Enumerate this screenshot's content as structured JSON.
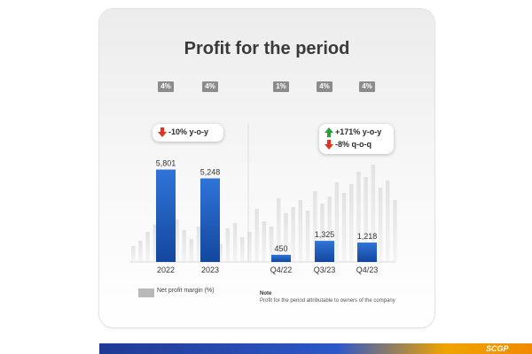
{
  "chart_data": {
    "type": "bar",
    "title": "Profit for the period",
    "annual": {
      "categories": [
        "2022",
        "2023"
      ],
      "values": [
        5801,
        5248
      ],
      "value_labels": [
        "5,801",
        "5,248"
      ],
      "margins": [
        "4%",
        "4%"
      ],
      "change": [
        {
          "direction": "down",
          "text": "-10% y-o-y"
        }
      ]
    },
    "quarterly": {
      "categories": [
        "Q4/22",
        "Q3/23",
        "Q4/23"
      ],
      "values": [
        450,
        1325,
        1218
      ],
      "value_labels": [
        "450",
        "1,325",
        "1,218"
      ],
      "margins": [
        "1%",
        "4%",
        "4%"
      ],
      "change": [
        {
          "direction": "up",
          "text": "+171% y-o-y"
        },
        {
          "direction": "down",
          "text": "-8% q-o-q"
        }
      ]
    },
    "ylim": [
      0,
      7000
    ],
    "series_color": "#1f5fc4",
    "legend": {
      "label": "Net profit margin (%)",
      "color": "#b9b9b9"
    },
    "note": {
      "title": "Note",
      "text": "Profit for the period attributable to owners of the company"
    }
  },
  "brand": {
    "logo_text": "SCGP",
    "up_color": "#2e9e3e",
    "down_color": "#e5311d"
  }
}
